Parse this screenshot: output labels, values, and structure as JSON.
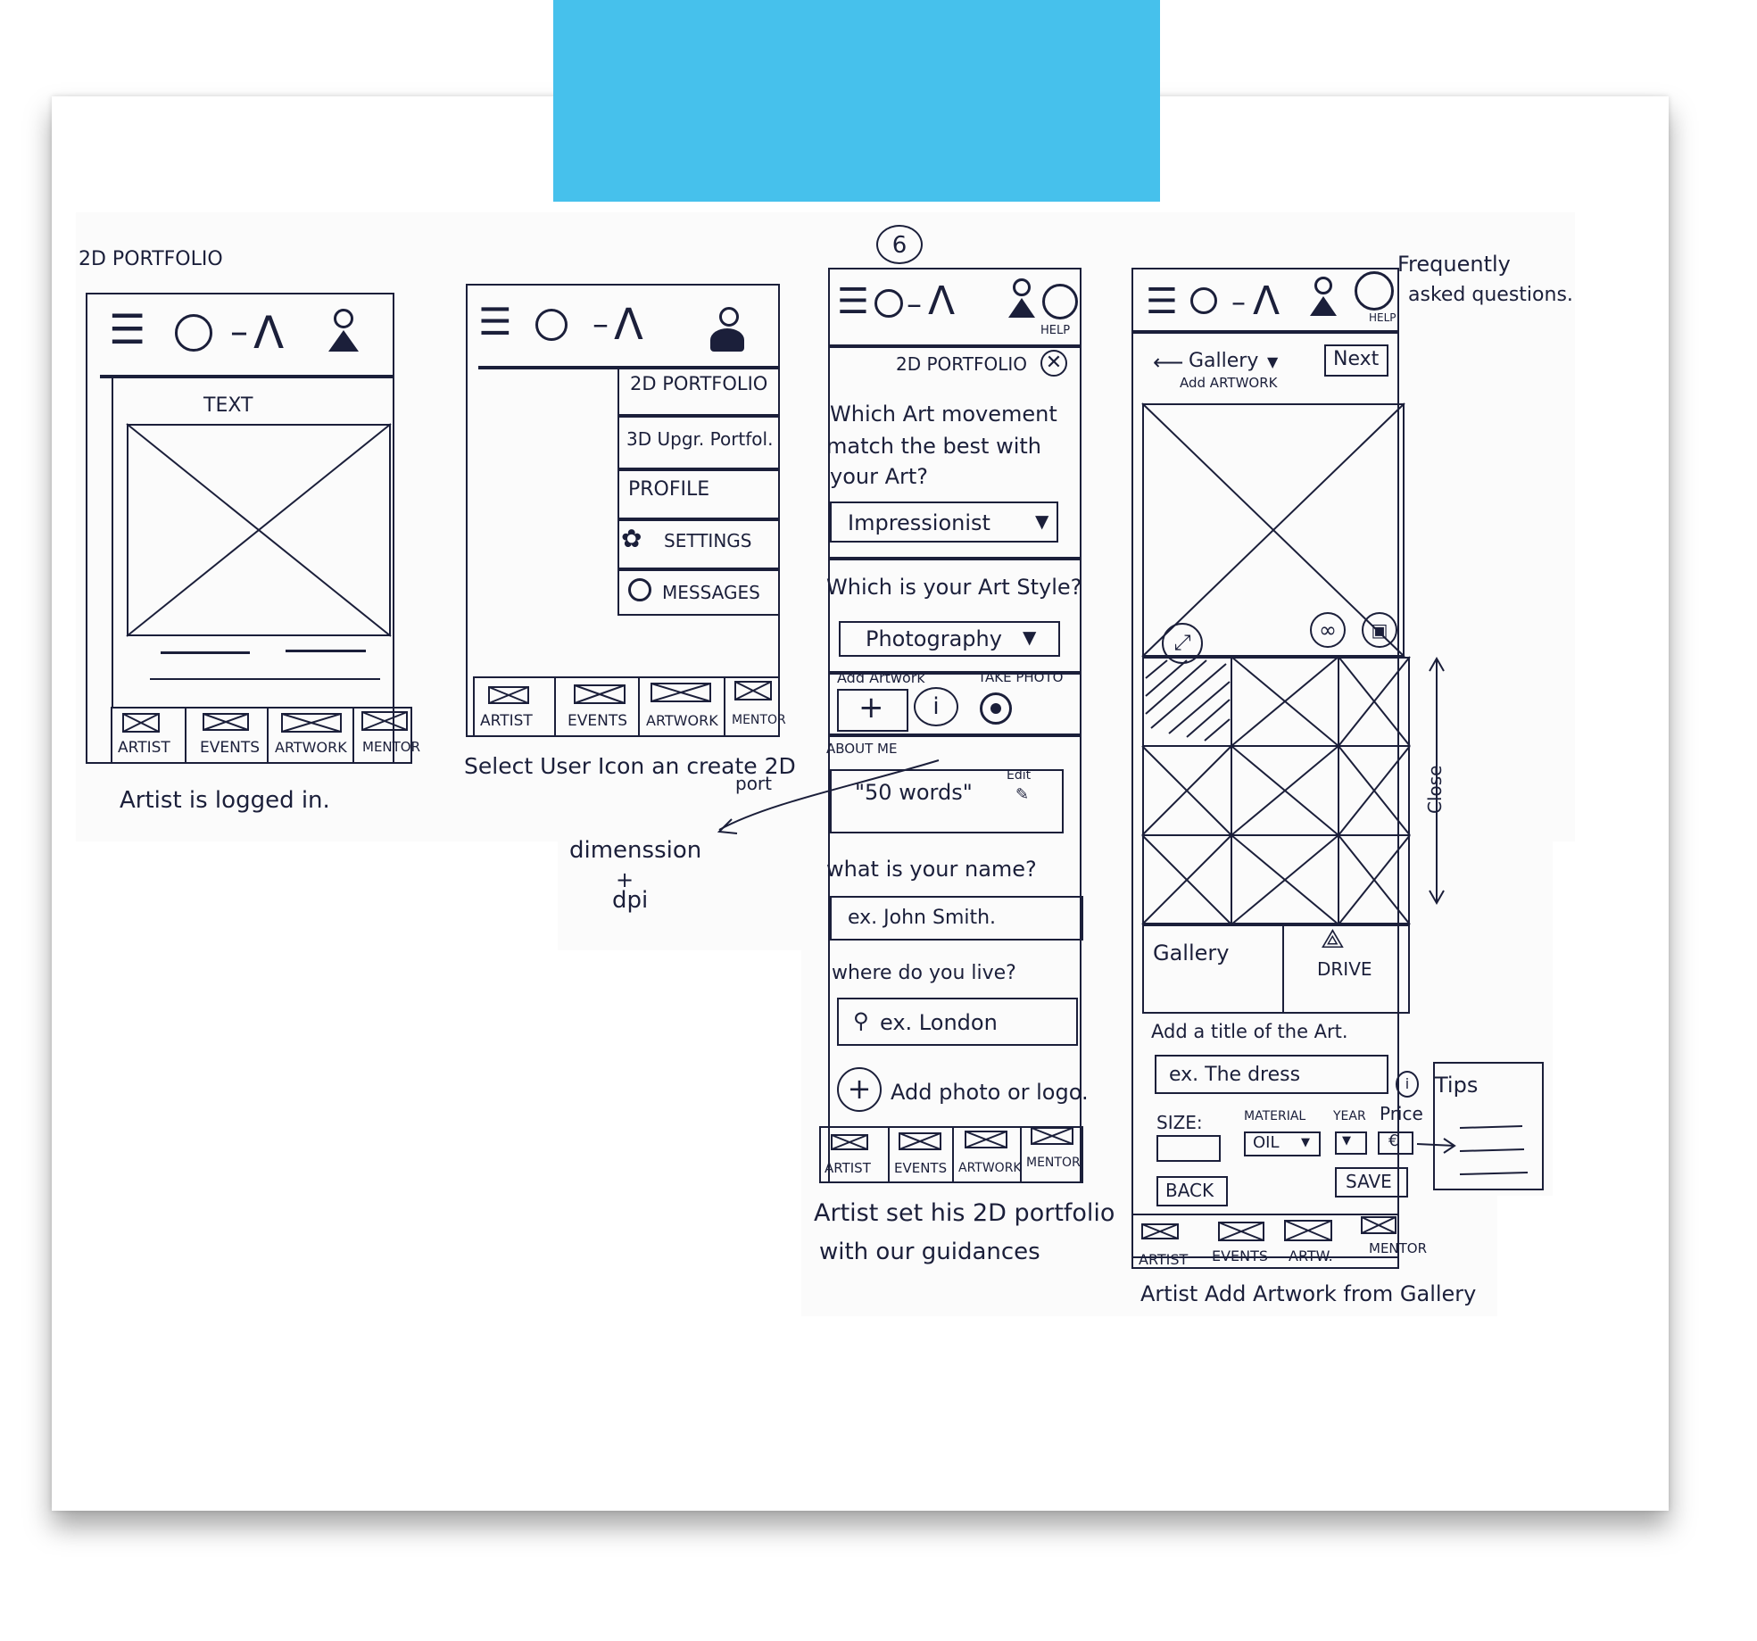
{
  "screen1": {
    "heading": "2D PORTFOLIO",
    "content_text": "TEXT",
    "nav": [
      "ARTIST",
      "EVENTS",
      "ARTWORK",
      "MENTOR"
    ],
    "caption": "Artist is logged in."
  },
  "screen2": {
    "menu": [
      "2D PORTFOLIO",
      "3D Upgr. Portfol.",
      "PROFILE",
      "SETTINGS",
      "MESSAGES"
    ],
    "nav": [
      "ARTIST",
      "EVENTS",
      "ARTWORK",
      "MENTOR"
    ],
    "caption_line1": "Select User Icon an create 2D",
    "caption_line2": "port"
  },
  "annotation": {
    "line1": "dimenssion",
    "line2": "+",
    "line3": "dpi"
  },
  "screen3": {
    "step_number": "6",
    "help": "HELP",
    "title": "2D PORTFOLIO",
    "q1_line1": "Which Art movement",
    "q1_line2": "match the best with",
    "q1_line3": "your Art?",
    "q1_value": "Impressionist",
    "q2": "Which is your Art Style?",
    "q2_value": "Photography",
    "add_artwork": "Add Artwork",
    "take_photo": "TAKE PHOTO",
    "about_label": "ABOUT ME",
    "about_value": "\"50 words\"",
    "edit": "Edit",
    "q3": "what is your name?",
    "name_placeholder": "ex. John Smith.",
    "q4": "where do you live?",
    "location_placeholder": "ex. London",
    "add_photo": "Add photo or logo.",
    "nav": [
      "ARTIST",
      "EVENTS",
      "ARTWORK",
      "MENTOR"
    ],
    "caption_line1": "Artist set his 2D portfolio",
    "caption_line2": "with our guidances"
  },
  "screen4": {
    "help": "HELP",
    "faq_line1": "Frequently",
    "faq_line2": "asked questions.",
    "back_label": "Gallery",
    "sub_label": "Add ARTWORK",
    "next": "Next",
    "close": "Close",
    "gallery": "Gallery",
    "drive": "DRIVE",
    "title_q": "Add a title of the Art.",
    "title_placeholder": "ex. The dress",
    "size": "SIZE:",
    "material": "MATERIAL",
    "material_value": "OIL",
    "year": "YEAR",
    "price": "Price",
    "currency": "€",
    "back_btn": "BACK",
    "save_btn": "SAVE",
    "tips": "Tips",
    "nav": [
      "ARTIST",
      "EVENTS",
      "ARTW.",
      "MENTOR"
    ],
    "caption": "Artist Add Artwork from Gallery"
  }
}
